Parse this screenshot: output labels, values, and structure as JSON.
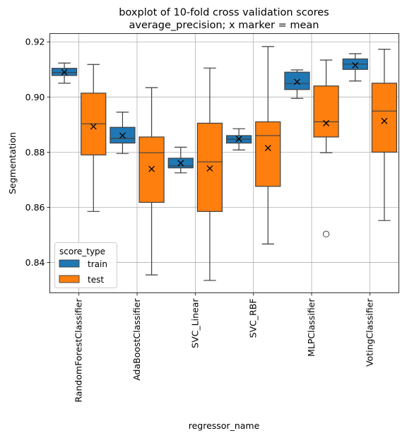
{
  "chart_data": {
    "type": "boxplot",
    "title_line1": "boxplot of 10-fold cross validation scores",
    "title_line2": "average_precision; x marker = mean",
    "xlabel": "regressor_name",
    "ylabel": "Segmentation",
    "ylim": [
      0.829,
      0.923
    ],
    "yticks": [
      "0.84",
      "0.86",
      "0.88",
      "0.90",
      "0.92"
    ],
    "ytick_values": [
      0.84,
      0.86,
      0.88,
      0.9,
      0.92
    ],
    "grid": true,
    "legend": {
      "title": "score_type",
      "placement": "lower-left"
    },
    "categories": [
      "RandomForestClassifier",
      "AdaBoostClassifier",
      "SVC_Linear",
      "SVC_RBF",
      "MLPClassifier",
      "VotingClassifier"
    ],
    "series": [
      {
        "name": "train",
        "color": "#1f77b4",
        "boxes": [
          {
            "whislo": 0.905,
            "q1": 0.9078,
            "med": 0.9089,
            "q3": 0.9104,
            "whishi": 0.9123,
            "mean": 0.909,
            "fliers": []
          },
          {
            "whislo": 0.8795,
            "q1": 0.8833,
            "med": 0.885,
            "q3": 0.889,
            "whishi": 0.8945,
            "mean": 0.886,
            "fliers": []
          },
          {
            "whislo": 0.8725,
            "q1": 0.8743,
            "med": 0.875,
            "q3": 0.8778,
            "whishi": 0.8818,
            "mean": 0.876,
            "fliers": []
          },
          {
            "whislo": 0.8808,
            "q1": 0.8833,
            "med": 0.8847,
            "q3": 0.886,
            "whishi": 0.8885,
            "mean": 0.8848,
            "fliers": []
          },
          {
            "whislo": 0.8995,
            "q1": 0.9027,
            "med": 0.9049,
            "q3": 0.909,
            "whishi": 0.9098,
            "mean": 0.9055,
            "fliers": []
          },
          {
            "whislo": 0.9058,
            "q1": 0.91,
            "med": 0.9119,
            "q3": 0.9138,
            "whishi": 0.9157,
            "mean": 0.9115,
            "fliers": []
          }
        ]
      },
      {
        "name": "test",
        "color": "#ff7f0e",
        "boxes": [
          {
            "whislo": 0.8585,
            "q1": 0.879,
            "med": 0.8903,
            "q3": 0.9014,
            "whishi": 0.9118,
            "mean": 0.8893,
            "fliers": []
          },
          {
            "whislo": 0.8355,
            "q1": 0.8618,
            "med": 0.8798,
            "q3": 0.8855,
            "whishi": 0.9034,
            "mean": 0.8739,
            "fliers": []
          },
          {
            "whislo": 0.8335,
            "q1": 0.8585,
            "med": 0.8765,
            "q3": 0.8905,
            "whishi": 0.9105,
            "mean": 0.8741,
            "fliers": []
          },
          {
            "whislo": 0.8467,
            "q1": 0.8676,
            "med": 0.886,
            "q3": 0.891,
            "whishi": 0.9183,
            "mean": 0.8815,
            "fliers": []
          },
          {
            "whislo": 0.8798,
            "q1": 0.8855,
            "med": 0.891,
            "q3": 0.904,
            "whishi": 0.9134,
            "mean": 0.8905,
            "fliers": [
              0.8503
            ]
          },
          {
            "whislo": 0.8552,
            "q1": 0.88,
            "med": 0.8949,
            "q3": 0.905,
            "whishi": 0.9173,
            "mean": 0.8913,
            "fliers": []
          }
        ]
      }
    ]
  }
}
